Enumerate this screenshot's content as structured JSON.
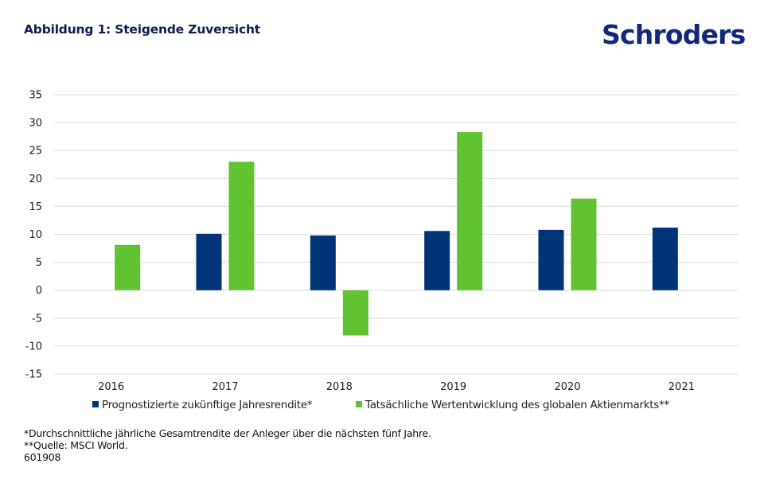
{
  "header": {
    "title": "Abbildung 1: Steigende Zuversicht",
    "logo_text": "Schroders"
  },
  "colors": {
    "series_forecast": "#003478",
    "series_actual": "#62c332",
    "grid": "#e3e3e3",
    "title": "#0f1c54",
    "logo": "#13287a"
  },
  "chart_data": {
    "type": "bar",
    "title": "Abbildung 1: Steigende Zuversicht",
    "xlabel": "",
    "ylabel": "",
    "categories": [
      "2016",
      "2017",
      "2018",
      "2019",
      "2020",
      "2021"
    ],
    "ylim": [
      -15,
      35
    ],
    "yticks": [
      35,
      30,
      25,
      20,
      15,
      10,
      5,
      0,
      -5,
      -10,
      -15
    ],
    "grid": true,
    "legend_position": "bottom",
    "series": [
      {
        "name": "Prognostizierte zukünftige Jahresrendite*",
        "color": "#003478",
        "values": [
          null,
          10.1,
          9.8,
          10.6,
          10.8,
          11.2
        ]
      },
      {
        "name": "Tatsächliche Wertentwicklung des globalen Aktienmarkts**",
        "color": "#62c332",
        "values": [
          8.1,
          23.0,
          -8.1,
          28.3,
          16.4,
          null
        ]
      }
    ]
  },
  "legend": {
    "items": [
      {
        "label": "Prognostizierte zukünftige Jahresrendite*"
      },
      {
        "label": "Tatsächliche Wertentwicklung des globalen Aktienmarkts**"
      }
    ]
  },
  "footnotes": {
    "line1": "*Durchschnittliche jährliche Gesamtrendite der Anleger über die nächsten fünf Jahre.",
    "line2": "**Quelle: MSCI World.",
    "code": "601908"
  }
}
